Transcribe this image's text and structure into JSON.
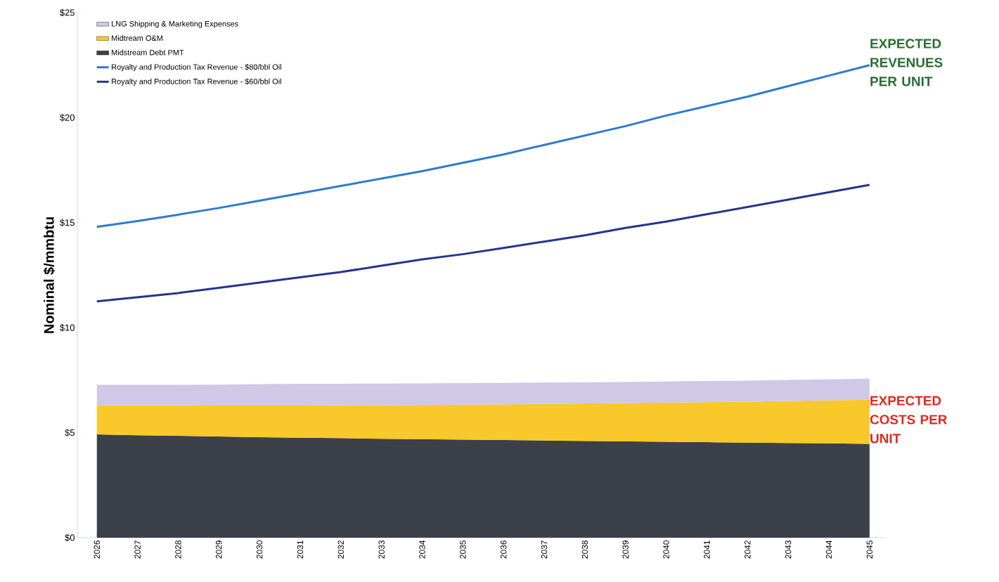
{
  "chart_data": {
    "type": "area",
    "stacked": true,
    "ylabel": "Nominal $/mmbtu",
    "categories": [
      "2026",
      "2027",
      "2028",
      "2029",
      "2030",
      "2031",
      "2032",
      "2033",
      "2034",
      "2035",
      "2036",
      "2037",
      "2038",
      "2039",
      "2040",
      "2041",
      "2042",
      "2043",
      "2044",
      "2045"
    ],
    "series": [
      {
        "name": "Midstream Debt PMT",
        "color": "#3c4048",
        "values": [
          4.92,
          4.88,
          4.85,
          4.82,
          4.79,
          4.76,
          4.74,
          4.71,
          4.69,
          4.67,
          4.65,
          4.63,
          4.61,
          4.59,
          4.57,
          4.55,
          4.53,
          4.51,
          4.49,
          4.47
        ]
      },
      {
        "name": "Midtream O&M",
        "color": "#f9c82a",
        "values": [
          1.38,
          1.42,
          1.45,
          1.47,
          1.5,
          1.53,
          1.56,
          1.6,
          1.63,
          1.66,
          1.7,
          1.74,
          1.78,
          1.82,
          1.86,
          1.9,
          1.95,
          2.0,
          2.05,
          2.1
        ]
      },
      {
        "name": "LNG Shipping & Marketing Expenses",
        "color": "#cfc8e6",
        "values": [
          0.98,
          0.98,
          0.98,
          1.0,
          1.02,
          1.04,
          1.03,
          1.03,
          1.03,
          1.03,
          1.02,
          1.02,
          1.01,
          1.01,
          1.01,
          1.01,
          1.0,
          1.0,
          1.0,
          1.0
        ]
      },
      {
        "name": "Royalty and Production Tax Revenue - $80/bbl Oil",
        "type": "line",
        "color": "#2e7bd0",
        "values": [
          14.8,
          15.08,
          15.38,
          15.7,
          16.05,
          16.4,
          16.75,
          17.1,
          17.45,
          17.85,
          18.25,
          18.7,
          19.15,
          19.6,
          20.1,
          20.55,
          21.0,
          21.5,
          22.0,
          22.5
        ]
      },
      {
        "name": "Royalty and Production Tax Revenue - $60/bbl Oil",
        "type": "line",
        "color": "#26348e",
        "values": [
          11.25,
          11.45,
          11.65,
          11.9,
          12.15,
          12.4,
          12.65,
          12.95,
          13.25,
          13.5,
          13.8,
          14.1,
          14.4,
          14.75,
          15.05,
          15.4,
          15.75,
          16.1,
          16.45,
          16.8
        ]
      }
    ],
    "ylim": [
      0,
      25
    ],
    "yticks": [
      {
        "value": 0,
        "label": "$0"
      },
      {
        "value": 5,
        "label": "$5"
      },
      {
        "value": 10,
        "label": "$10"
      },
      {
        "value": 15,
        "label": "$15"
      },
      {
        "value": 20,
        "label": "$20"
      },
      {
        "value": 25,
        "label": "$25"
      }
    ],
    "legend": "top left",
    "annotations": [
      "EXPECTED REVENUES PER UNIT",
      "EXPECTED COSTS PER UNIT"
    ]
  }
}
